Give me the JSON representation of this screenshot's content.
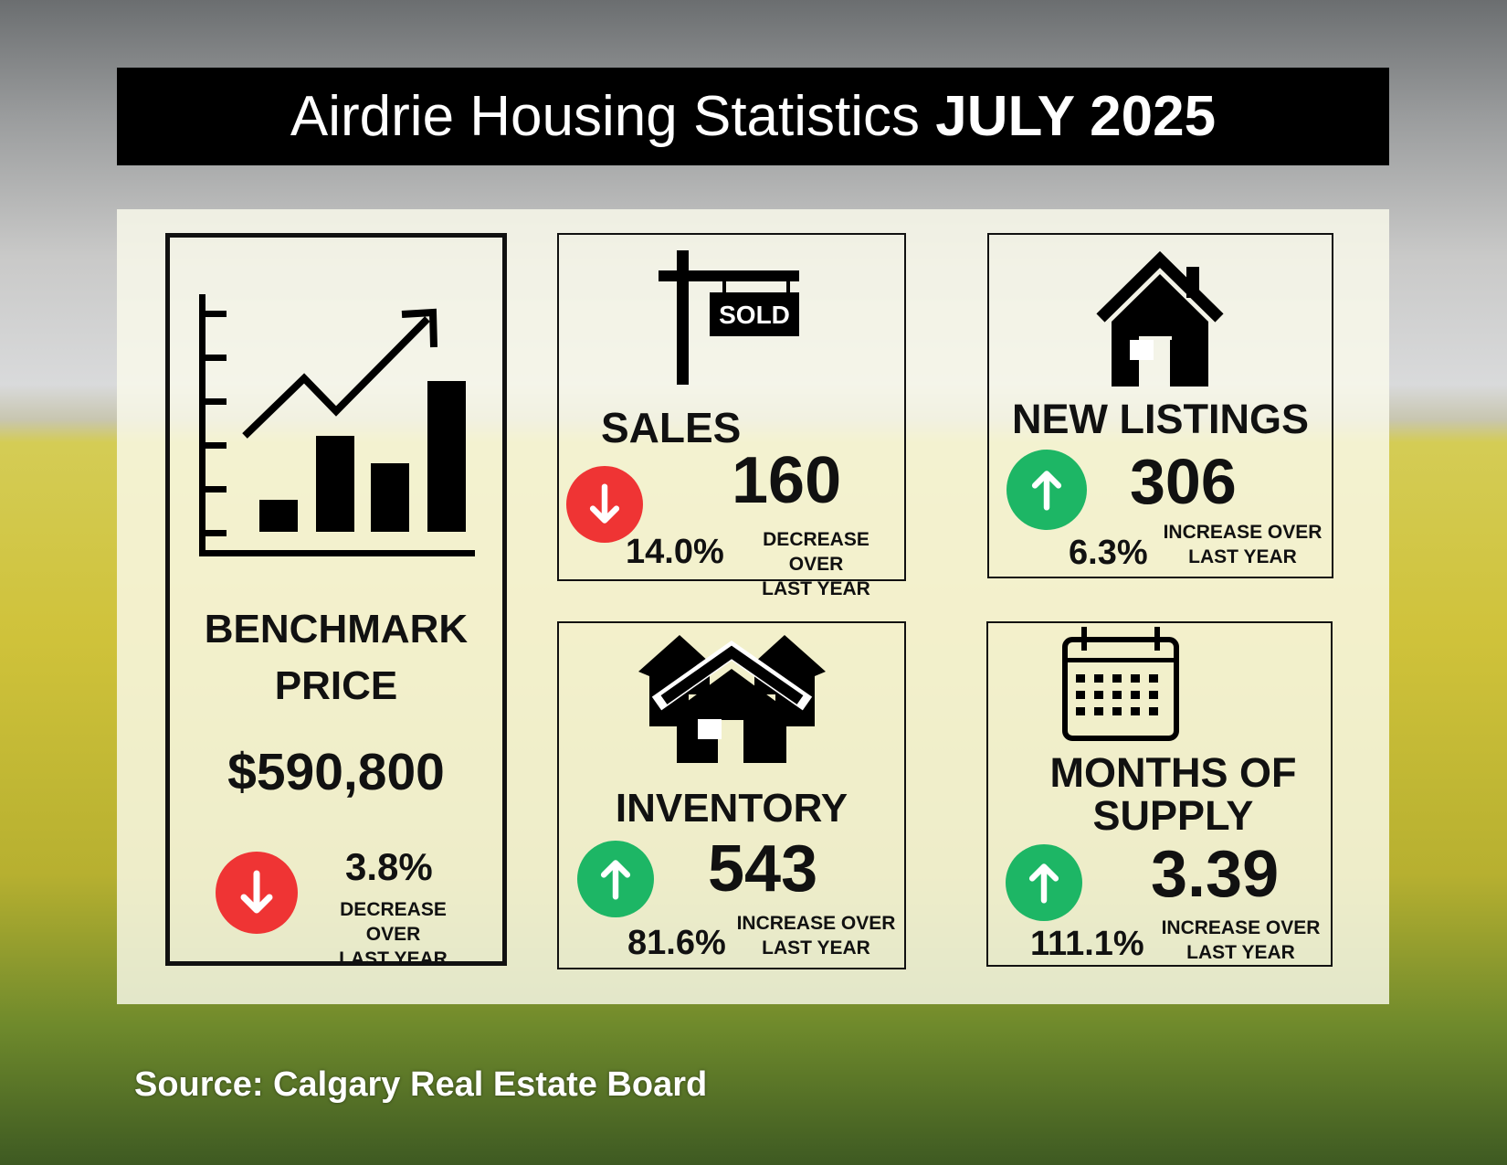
{
  "title": {
    "prefix": "Airdrie Housing Statistics ",
    "period": "JULY 2025"
  },
  "benchmark": {
    "label_line1": "BENCHMARK",
    "label_line2": "PRICE",
    "value": "$590,800",
    "change": "3.8%",
    "direction": "down",
    "change_line1": "DECREASE OVER",
    "change_line2": "LAST YEAR"
  },
  "sales": {
    "sign_text": "SOLD",
    "label": "SALES",
    "value": "160",
    "change": "14.0%",
    "direction": "down",
    "change_line1": "DECREASE OVER",
    "change_line2": "LAST YEAR"
  },
  "new_listings": {
    "label": "NEW LISTINGS",
    "value": "306",
    "change": "6.3%",
    "direction": "up",
    "change_line1": "INCREASE OVER",
    "change_line2": "LAST YEAR"
  },
  "inventory": {
    "label": "INVENTORY",
    "value": "543",
    "change": "81.6%",
    "direction": "up",
    "change_line1": "INCREASE OVER",
    "change_line2": "LAST YEAR"
  },
  "months_supply": {
    "label_line1": "MONTHS OF",
    "label_line2": "SUPPLY",
    "value": "3.39",
    "change": "111.1%",
    "direction": "up",
    "change_line1": "INCREASE OVER",
    "change_line2": "LAST YEAR"
  },
  "source": "Source: Calgary Real Estate Board",
  "colors": {
    "decrease": "#ef3434",
    "increase": "#1db665"
  }
}
